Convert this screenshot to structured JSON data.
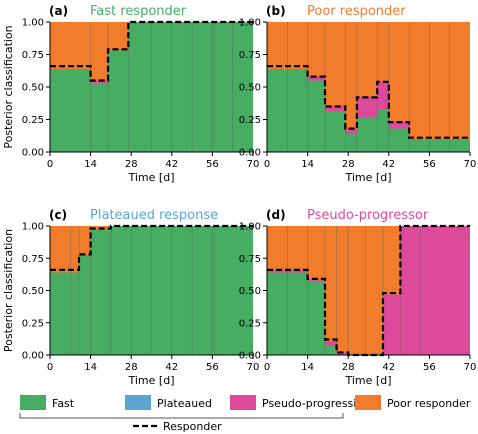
{
  "colors": {
    "fast": "#47ad63",
    "plateaued": "#5aa6d1",
    "pseudo": "#dd4a9a",
    "poor": "#f17c2c",
    "responder_line": "#000000"
  },
  "legend": {
    "items": [
      {
        "key": "fast",
        "label": "Fast"
      },
      {
        "key": "plateaued",
        "label": "Plateaued"
      },
      {
        "key": "pseudo",
        "label": "Pseudo-progression"
      },
      {
        "key": "poor",
        "label": "Poor responder"
      }
    ],
    "responder_label": "Responder"
  },
  "chart_data": [
    {
      "type": "area",
      "panel": "(a)",
      "title": "Fast responder",
      "title_color": "#47ad63",
      "xlabel": "Time [d]",
      "ylabel": "Posterior classification",
      "xlim": [
        0,
        70
      ],
      "ylim": [
        0,
        1
      ],
      "xticks": [
        0,
        14,
        28,
        42,
        56,
        70
      ],
      "yticks": [
        "0.00",
        "0.25",
        "0.50",
        "0.75",
        "1.00"
      ],
      "boundaries": [
        0,
        14,
        20,
        27,
        35,
        42,
        49,
        56,
        63,
        70
      ],
      "series": [
        {
          "key": "fast",
          "values": [
            0.64,
            0.53,
            0.78,
            1.0,
            1.0,
            1.0,
            1.0,
            1.0,
            1.0
          ]
        },
        {
          "key": "plateaued",
          "values": [
            0,
            0,
            0,
            0,
            0,
            0,
            0,
            0,
            0
          ]
        },
        {
          "key": "pseudo",
          "values": [
            0,
            0.02,
            0,
            0,
            0,
            0,
            0,
            0,
            0
          ]
        },
        {
          "key": "poor",
          "values": [
            0.36,
            0.45,
            0.22,
            0,
            0,
            0,
            0,
            0,
            0
          ]
        }
      ],
      "responder": [
        0.66,
        0.55,
        0.79,
        1.0,
        1.0,
        1.0,
        1.0,
        1.0,
        1.0
      ]
    },
    {
      "type": "area",
      "panel": "(b)",
      "title": "Poor responder",
      "title_color": "#f17c2c",
      "xlabel": "Time [d]",
      "ylabel": "",
      "xlim": [
        0,
        70
      ],
      "ylim": [
        0,
        1
      ],
      "xticks": [
        0,
        14,
        28,
        42,
        56,
        70
      ],
      "yticks": [
        "0.00",
        "0.25",
        "0.50",
        "0.75",
        "1.00"
      ],
      "boundaries": [
        0,
        7,
        14,
        20,
        27,
        31,
        38,
        42,
        49,
        56,
        63,
        70
      ],
      "series": [
        {
          "key": "fast",
          "values": [
            0.64,
            0.64,
            0.55,
            0.31,
            0.14,
            0.27,
            0.33,
            0.18,
            0.1,
            0.1,
            0.1
          ]
        },
        {
          "key": "plateaued",
          "values": [
            0,
            0,
            0,
            0,
            0,
            0,
            0,
            0,
            0,
            0,
            0
          ]
        },
        {
          "key": "pseudo",
          "values": [
            0,
            0,
            0.03,
            0.04,
            0.04,
            0.15,
            0.21,
            0.05,
            0,
            0,
            0
          ]
        },
        {
          "key": "poor",
          "values": [
            0.36,
            0.36,
            0.42,
            0.65,
            0.82,
            0.58,
            0.46,
            0.77,
            0.9,
            0.9,
            0.9
          ]
        }
      ],
      "responder": [
        0.66,
        0.66,
        0.58,
        0.35,
        0.18,
        0.42,
        0.54,
        0.23,
        0.11,
        0.11,
        0.11
      ]
    },
    {
      "type": "area",
      "panel": "(c)",
      "title": "Plateaued response",
      "title_color": "#5aa6d1",
      "xlabel": "Time [d]",
      "ylabel": "Posterior classification",
      "xlim": [
        0,
        70
      ],
      "ylim": [
        0,
        1
      ],
      "xticks": [
        0,
        14,
        28,
        42,
        56,
        70
      ],
      "yticks": [
        "0.00",
        "0.25",
        "0.50",
        "0.75",
        "1.00"
      ],
      "boundaries": [
        0,
        7,
        10,
        14,
        21,
        28,
        35,
        42,
        49,
        56,
        70
      ],
      "series": [
        {
          "key": "fast",
          "values": [
            0.64,
            0.64,
            0.77,
            0.97,
            1.0,
            1.0,
            1.0,
            1.0,
            1.0,
            1.0
          ]
        },
        {
          "key": "plateaued",
          "values": [
            0,
            0,
            0,
            0,
            0,
            0,
            0,
            0,
            0,
            0
          ]
        },
        {
          "key": "pseudo",
          "values": [
            0,
            0,
            0,
            0,
            0,
            0,
            0,
            0,
            0,
            0
          ]
        },
        {
          "key": "poor",
          "values": [
            0.36,
            0.36,
            0.23,
            0.03,
            0,
            0,
            0,
            0,
            0,
            0
          ]
        }
      ],
      "responder": [
        0.66,
        0.66,
        0.78,
        0.98,
        1.0,
        1.0,
        1.0,
        1.0,
        1.0,
        1.0
      ]
    },
    {
      "type": "area",
      "panel": "(d)",
      "title": "Pseudo-progressor",
      "title_color": "#dd4a9a",
      "xlabel": "Time [d]",
      "ylabel": "",
      "xlim": [
        0,
        70
      ],
      "ylim": [
        0,
        1
      ],
      "xticks": [
        0,
        14,
        28,
        42,
        56,
        70
      ],
      "yticks": [
        "0.00",
        "0.25",
        "0.50",
        "0.75",
        "1.00"
      ],
      "boundaries": [
        0,
        7,
        14,
        20,
        24,
        28,
        34,
        40,
        46,
        53,
        70
      ],
      "series": [
        {
          "key": "fast",
          "values": [
            0.64,
            0.64,
            0.57,
            0.07,
            0,
            0,
            0,
            0,
            0,
            0
          ]
        },
        {
          "key": "plateaued",
          "values": [
            0,
            0,
            0,
            0,
            0,
            0,
            0,
            0,
            0,
            0
          ]
        },
        {
          "key": "pseudo",
          "values": [
            0.02,
            0.02,
            0.02,
            0.04,
            0.02,
            0.0,
            0.0,
            0.47,
            1.0,
            1.0
          ]
        },
        {
          "key": "poor",
          "values": [
            0.34,
            0.34,
            0.41,
            0.89,
            0.98,
            1.0,
            1.0,
            0.53,
            0,
            0
          ]
        }
      ],
      "responder": [
        0.66,
        0.66,
        0.59,
        0.12,
        0.02,
        0.0,
        0.0,
        0.48,
        1.0,
        1.0
      ]
    }
  ]
}
